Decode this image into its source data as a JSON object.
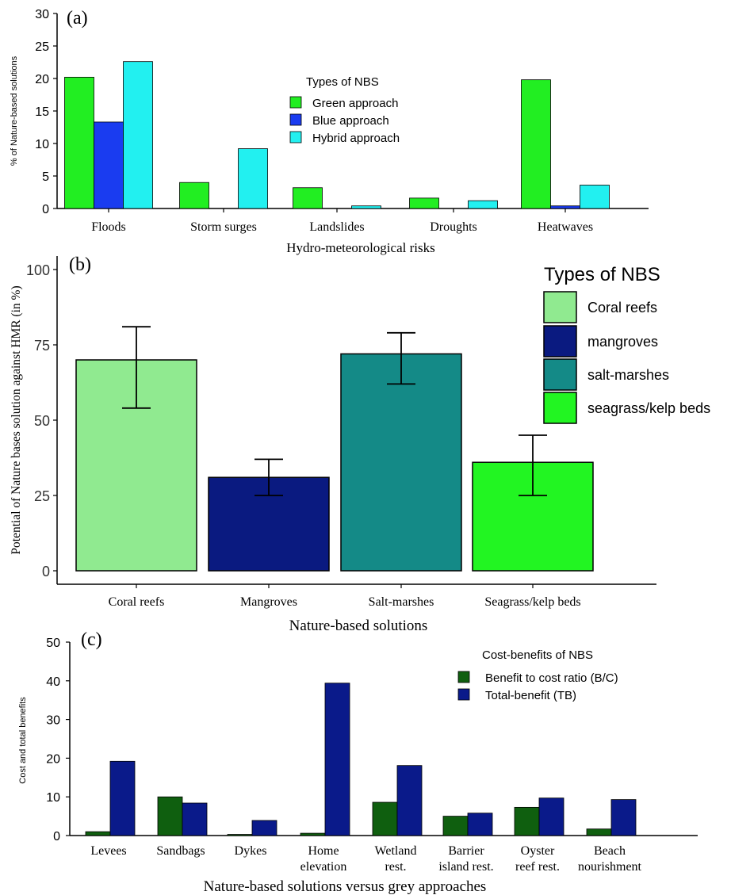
{
  "chart_data": [
    {
      "type": "bar",
      "panel_label": "(a)",
      "categories": [
        "Floods",
        "Storm surges",
        "Landslides",
        "Droughts",
        "Heatwaves"
      ],
      "series": [
        {
          "name": "Green approach",
          "color": "#22ee22",
          "values": [
            20.2,
            4.0,
            3.2,
            1.6,
            19.8
          ]
        },
        {
          "name": "Blue approach",
          "color": "#1a3cf0",
          "values": [
            13.3,
            0,
            0,
            0,
            0.4
          ]
        },
        {
          "name": "Hybrid approach",
          "color": "#22f0f0",
          "values": [
            22.6,
            9.2,
            0.4,
            1.2,
            3.6
          ]
        }
      ],
      "xlabel": "Hydro-meteorological risks",
      "ylabel": "% of Nature-based solutions",
      "ylim": [
        0,
        30
      ],
      "yticks": [
        0,
        5,
        10,
        15,
        20,
        25,
        30
      ],
      "legend_title": "Types of NBS",
      "legend_position": "top-center",
      "grid": false
    },
    {
      "type": "bar",
      "panel_label": "(b)",
      "categories": [
        "Coral reefs",
        "Mangroves",
        "Salt-marshes",
        "Seagrass/kelp beds"
      ],
      "values": [
        70,
        31,
        72,
        36
      ],
      "error_low": [
        54,
        25,
        62,
        25
      ],
      "error_high": [
        81,
        37,
        79,
        45
      ],
      "colors": [
        "#90ea90",
        "#0a1a80",
        "#148a87",
        "#22f522"
      ],
      "legend_labels": [
        "Coral reefs",
        "mangroves",
        "salt-marshes",
        "seagrass/kelp beds"
      ],
      "legend_title": "Types of NBS",
      "legend_position": "top-right",
      "xlabel": "Nature-based solutions",
      "ylabel": "Potential of Nature bases solution against HMR (in %)",
      "ylim": [
        0,
        100
      ],
      "yticks": [
        0,
        25,
        50,
        75,
        100
      ],
      "grid": false
    },
    {
      "type": "bar",
      "panel_label": "(c)",
      "categories": [
        "Levees",
        "Sandbags",
        "Dykes",
        "Home elevation",
        "Wetland rest.",
        "Barrier island rest.",
        "Oyster reef rest.",
        "Beach nourishment"
      ],
      "category_lines": [
        [
          "Levees"
        ],
        [
          "Sandbags"
        ],
        [
          "Dykes"
        ],
        [
          "Home",
          "elevation"
        ],
        [
          "Wetland",
          "rest."
        ],
        [
          "Barrier",
          "island rest."
        ],
        [
          "Oyster",
          "reef rest."
        ],
        [
          "Beach",
          "nourishment"
        ]
      ],
      "series": [
        {
          "name": "Benefit to cost ratio (B/C)",
          "color": "#0f5f0f",
          "values": [
            1.0,
            10.0,
            0.3,
            0.6,
            8.6,
            5.0,
            7.3,
            1.7
          ]
        },
        {
          "name": "Total-benefit (TB)",
          "color": "#0a1a8a",
          "values": [
            19.2,
            8.4,
            3.9,
            39.4,
            18.1,
            5.8,
            9.7,
            9.3
          ]
        }
      ],
      "xlabel": "Nature-based solutions versus grey approaches",
      "ylabel": "Cost and total benefits",
      "ylim": [
        0,
        50
      ],
      "yticks": [
        0,
        10,
        20,
        30,
        40,
        50
      ],
      "legend_title": "Cost-benefits of NBS",
      "legend_position": "top-right",
      "grid": false
    }
  ]
}
